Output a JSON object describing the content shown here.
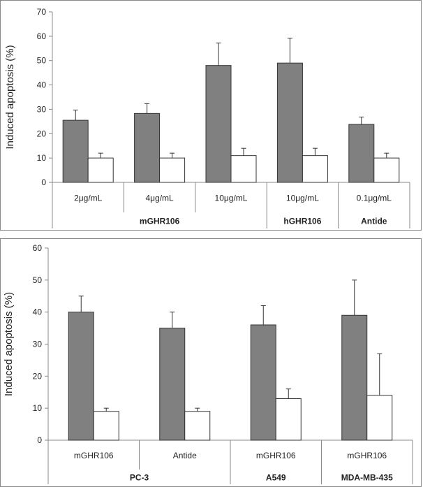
{
  "chart_data": [
    {
      "type": "bar",
      "ylabel": "Induced apoptosis (%)",
      "ylim": [
        0,
        70
      ],
      "yticks": [
        0,
        10,
        20,
        30,
        40,
        50,
        60,
        70
      ],
      "grid": false,
      "categories": [
        "2μg/mL",
        "4μg/mL",
        "10μg/mL",
        "10μg/mL",
        "0.1μg/mL"
      ],
      "groups": [
        {
          "label": "mGHR106",
          "span": 3
        },
        {
          "label": "hGHR106",
          "span": 1
        },
        {
          "label": "Antide",
          "span": 1
        }
      ],
      "series": [
        {
          "values": [
            25.5,
            28.3,
            48,
            49,
            23.8
          ],
          "errors": [
            4.2,
            4,
            9.2,
            10.2,
            3
          ],
          "color": "#808080"
        },
        {
          "values": [
            10,
            10,
            11,
            11,
            10
          ],
          "errors": [
            2,
            2,
            3,
            3,
            2
          ],
          "color": "#ffffff"
        }
      ]
    },
    {
      "type": "bar",
      "ylabel": "Induced apoptosis (%)",
      "ylim": [
        0,
        60
      ],
      "yticks": [
        0,
        10,
        20,
        30,
        40,
        50,
        60
      ],
      "grid": false,
      "categories": [
        "mGHR106",
        "Antide",
        "mGHR106",
        "mGHR106"
      ],
      "groups": [
        {
          "label": "PC-3",
          "span": 2
        },
        {
          "label": "A549",
          "span": 1
        },
        {
          "label": "MDA-MB-435",
          "span": 1
        }
      ],
      "series": [
        {
          "values": [
            40,
            35,
            36,
            39
          ],
          "errors": [
            5,
            5,
            6,
            11
          ],
          "color": "#808080"
        },
        {
          "values": [
            9,
            9,
            13,
            14
          ],
          "errors": [
            1,
            1,
            3,
            13
          ],
          "color": "#ffffff"
        }
      ]
    }
  ]
}
